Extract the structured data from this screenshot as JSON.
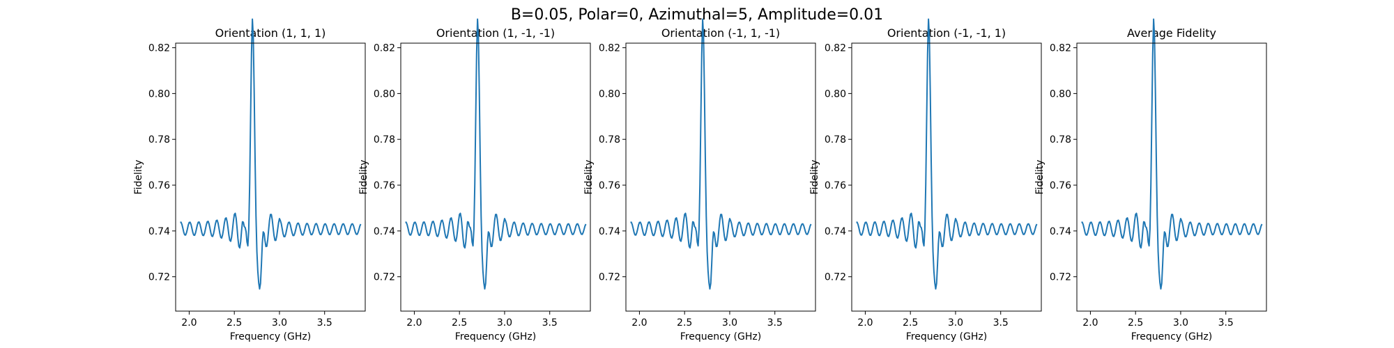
{
  "figure": {
    "suptitle": "B=0.05, Polar=0, Azimuthal=5, Amplitude=0.01"
  },
  "colors": {
    "line": "#1f77b4",
    "axes": "#000000",
    "background": "#ffffff"
  },
  "chart_data": [
    {
      "type": "line",
      "title": "Orientation (1, 1, 1)",
      "xlabel": "Frequency (GHz)",
      "ylabel": "Fidelity",
      "xlim": [
        1.85,
        3.95
      ],
      "ylim": [
        0.705,
        0.822
      ],
      "xticks": [
        "2.0",
        "2.5",
        "3.0",
        "3.5"
      ],
      "yticks": [
        "0.72",
        "0.74",
        "0.76",
        "0.78",
        "0.80",
        "0.82"
      ],
      "grid": false,
      "series": [
        {
          "name": "",
          "x": [],
          "y": []
        }
      ]
    },
    {
      "type": "line",
      "title": "Orientation (1, -1, -1)",
      "xlabel": "Frequency (GHz)",
      "ylabel": "Fidelity",
      "xlim": [
        1.85,
        3.95
      ],
      "ylim": [
        0.705,
        0.822
      ],
      "xticks": [
        "2.0",
        "2.5",
        "3.0",
        "3.5"
      ],
      "yticks": [
        "0.72",
        "0.74",
        "0.76",
        "0.78",
        "0.80",
        "0.82"
      ],
      "grid": false,
      "series": [
        {
          "name": "",
          "x": [],
          "y": []
        }
      ]
    },
    {
      "type": "line",
      "title": "Orientation (-1, 1, -1)",
      "xlabel": "Frequency (GHz)",
      "ylabel": "Fidelity",
      "xlim": [
        1.85,
        3.95
      ],
      "ylim": [
        0.705,
        0.822
      ],
      "xticks": [
        "2.0",
        "2.5",
        "3.0",
        "3.5"
      ],
      "yticks": [
        "0.72",
        "0.74",
        "0.76",
        "0.78",
        "0.80",
        "0.82"
      ],
      "grid": false,
      "series": [
        {
          "name": "",
          "x": [],
          "y": []
        }
      ]
    },
    {
      "type": "line",
      "title": "Orientation (-1, -1, 1)",
      "xlabel": "Frequency (GHz)",
      "ylabel": "Fidelity",
      "xlim": [
        1.85,
        3.95
      ],
      "ylim": [
        0.705,
        0.822
      ],
      "xticks": [
        "2.0",
        "2.5",
        "3.0",
        "3.5"
      ],
      "yticks": [
        "0.72",
        "0.74",
        "0.76",
        "0.78",
        "0.80",
        "0.82"
      ],
      "grid": false,
      "series": [
        {
          "name": "",
          "x": [],
          "y": []
        }
      ]
    },
    {
      "type": "line",
      "title": "Average Fidelity",
      "xlabel": "Frequency (GHz)",
      "ylabel": "Fidelity",
      "xlim": [
        1.85,
        3.95
      ],
      "ylim": [
        0.705,
        0.822
      ],
      "xticks": [
        "2.0",
        "2.5",
        "3.0",
        "3.5"
      ],
      "yticks": [
        "0.72",
        "0.74",
        "0.76",
        "0.78",
        "0.80",
        "0.82"
      ],
      "grid": false,
      "series": [
        {
          "name": "",
          "x": [],
          "y": []
        }
      ]
    }
  ]
}
